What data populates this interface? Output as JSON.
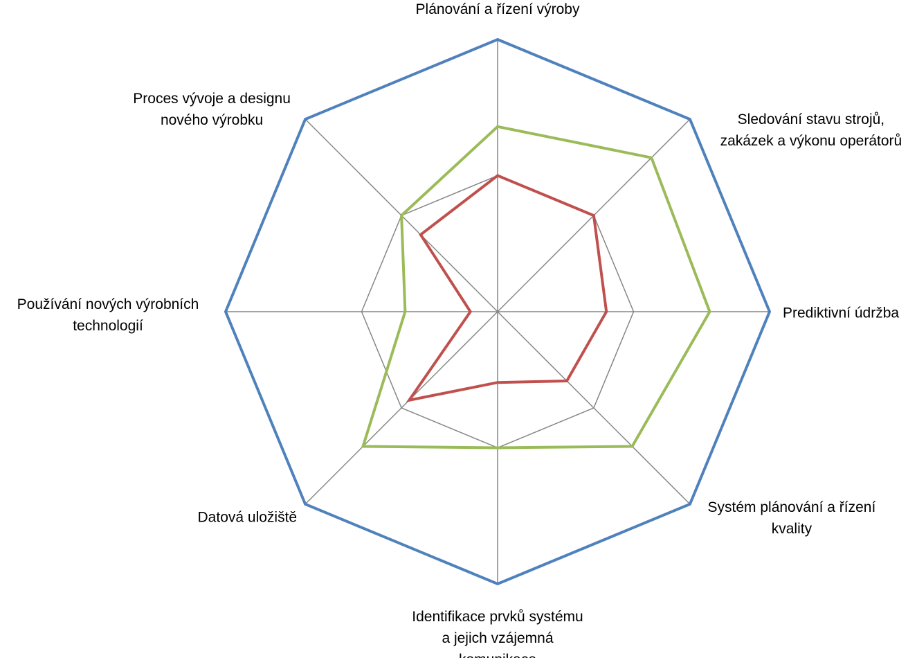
{
  "chart_data": {
    "type": "radar",
    "categories": [
      [
        "Plánování a řízení výroby"
      ],
      [
        "Sledování stavu strojů,",
        "zakázek a výkonu operátorů"
      ],
      [
        "Prediktivní údržba"
      ],
      [
        "Systém plánování a řízení",
        "kvality"
      ],
      [
        "Identifikace prvků systému",
        "a jejich vzájemná",
        "komunikace"
      ],
      [
        "Datová uložiště"
      ],
      [
        "Používání nových výrobních",
        "technologií"
      ],
      [
        "Proces vývoje a designu",
        "nového výrobku"
      ]
    ],
    "rlim": [
      0,
      5
    ],
    "gridlines": [
      0,
      2.5,
      5
    ],
    "grid": true,
    "legend": "none",
    "series": [
      {
        "values": [
          5,
          5,
          5,
          5,
          5,
          5,
          5,
          5
        ],
        "color": "#4f81bd"
      },
      {
        "values": [
          3.4,
          4.0,
          3.9,
          3.5,
          2.5,
          3.5,
          1.7,
          2.5
        ],
        "color": "#9bbb59"
      },
      {
        "values": [
          2.5,
          2.5,
          2.0,
          1.8,
          1.3,
          2.3,
          0.5,
          2.0
        ],
        "color": "#c0504d"
      }
    ],
    "axis_color": "#868686"
  }
}
